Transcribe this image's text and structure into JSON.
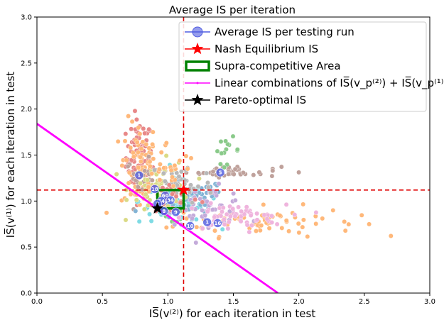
{
  "chart_data": {
    "type": "scatter",
    "title": "Average IS per iteration",
    "xlabel": "IS̅(v⁽²⁾) for each iteration in test",
    "ylabel": "IS̅(v⁽¹⁾) for each iteration in test",
    "xlim": [
      0.0,
      3.0
    ],
    "ylim": [
      0.0,
      3.0
    ],
    "x_ticks": [
      "0.0",
      "0.5",
      "1.0",
      "1.5",
      "2.0",
      "2.5",
      "3.0"
    ],
    "y_ticks": [
      "0.0",
      "0.5",
      "1.0",
      "1.5",
      "2.0",
      "2.5",
      "3.0"
    ],
    "grid": false,
    "legend_position": "top-right",
    "legend": [
      {
        "label": "Average IS per testing run",
        "marker": "circle",
        "color": "#4f5be0"
      },
      {
        "label": "Nash Equilibrium IS",
        "marker": "star",
        "color": "#ff0000"
      },
      {
        "label": "Supra-competitive Area",
        "marker": "rect",
        "color": "#008000"
      },
      {
        "label": "Linear combinations of IS̅(v_p⁽²⁾) + IS̅(v_p⁽¹⁾)",
        "marker": "line",
        "color": "#ff00ff"
      },
      {
        "label": "Pareto-optimal IS",
        "marker": "star",
        "color": "#000000"
      }
    ],
    "nash_equilibrium": {
      "x": 1.12,
      "y": 1.12
    },
    "pareto_optimal": {
      "x": 0.92,
      "y": 0.92
    },
    "supra_competitive_area": {
      "x": [
        0.92,
        1.12
      ],
      "y": [
        0.92,
        1.12
      ]
    },
    "reference_lines": {
      "vertical_x": 1.12,
      "horizontal_y": 1.12
    },
    "linear_combination": {
      "x": [
        0.0,
        1.84
      ],
      "y": [
        1.84,
        0.0
      ]
    },
    "series_clusters": [
      {
        "color": "#d62728",
        "cx": 0.78,
        "cy": 1.48,
        "sx": 0.05,
        "sy": 0.2,
        "n": 80
      },
      {
        "color": "#ff7f0e",
        "cx": 0.78,
        "cy": 1.38,
        "sx": 0.07,
        "sy": 0.25,
        "n": 70
      },
      {
        "color": "#ff7f0e",
        "cx": 1.75,
        "cy": 0.78,
        "sx": 0.35,
        "sy": 0.08,
        "n": 70
      },
      {
        "color": "#8c564b",
        "cx": 1.5,
        "cy": 1.32,
        "sx": 0.18,
        "sy": 0.03,
        "n": 40
      },
      {
        "color": "#8c564b",
        "cx": 0.8,
        "cy": 1.25,
        "sx": 0.06,
        "sy": 0.1,
        "n": 20
      },
      {
        "color": "#2ca02c",
        "cx": 1.45,
        "cy": 1.55,
        "sx": 0.05,
        "sy": 0.07,
        "n": 14
      },
      {
        "color": "#2ca02c",
        "cx": 1.0,
        "cy": 0.95,
        "sx": 0.1,
        "sy": 0.1,
        "n": 20
      },
      {
        "color": "#17becf",
        "cx": 1.08,
        "cy": 1.0,
        "sx": 0.15,
        "sy": 0.12,
        "n": 70
      },
      {
        "color": "#1f77b4",
        "cx": 1.15,
        "cy": 1.0,
        "sx": 0.15,
        "sy": 0.12,
        "n": 50
      },
      {
        "color": "#bcbd22",
        "cx": 0.95,
        "cy": 1.15,
        "sx": 0.12,
        "sy": 0.14,
        "n": 50
      },
      {
        "color": "#9467bd",
        "cx": 1.3,
        "cy": 0.95,
        "sx": 0.15,
        "sy": 0.1,
        "n": 50
      },
      {
        "color": "#e377c2",
        "cx": 1.5,
        "cy": 0.82,
        "sx": 0.2,
        "sy": 0.07,
        "n": 60
      },
      {
        "color": "#7f7f7f",
        "cx": 1.1,
        "cy": 1.2,
        "sx": 0.12,
        "sy": 0.12,
        "n": 35
      },
      {
        "color": "#d62728",
        "cx": 1.05,
        "cy": 1.05,
        "sx": 0.1,
        "sy": 0.1,
        "n": 25
      },
      {
        "color": "#ff7f0e",
        "cx": 1.0,
        "cy": 1.35,
        "sx": 0.12,
        "sy": 0.15,
        "n": 30
      }
    ],
    "labeled_markers": [
      {
        "label": "1",
        "x": 0.78,
        "y": 1.28
      },
      {
        "label": "5",
        "x": 1.4,
        "y": 1.31
      },
      {
        "label": "18",
        "x": 0.9,
        "y": 1.13
      },
      {
        "label": "60",
        "x": 0.98,
        "y": 1.06
      },
      {
        "label": "34",
        "x": 1.02,
        "y": 1.01
      },
      {
        "label": "54",
        "x": 0.95,
        "y": 1.0
      },
      {
        "label": "3",
        "x": 0.92,
        "y": 0.97
      },
      {
        "label": "8",
        "x": 0.97,
        "y": 0.89
      },
      {
        "label": "9",
        "x": 1.06,
        "y": 0.88
      },
      {
        "label": "10",
        "x": 1.17,
        "y": 0.73
      },
      {
        "label": "1",
        "x": 1.3,
        "y": 0.77
      },
      {
        "label": "16",
        "x": 1.38,
        "y": 0.76
      }
    ]
  }
}
